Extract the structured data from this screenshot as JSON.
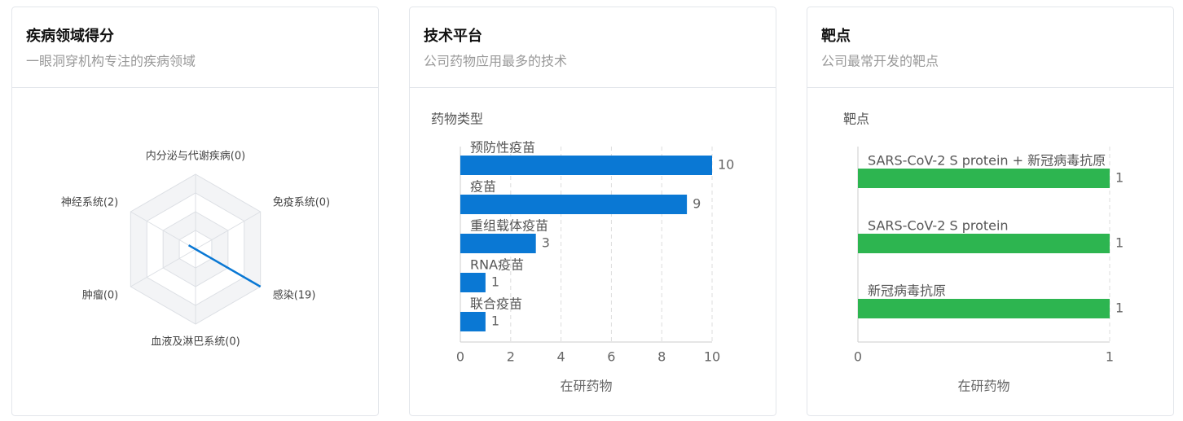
{
  "chart_data": [
    {
      "type": "radar",
      "title": "疾病领域得分",
      "subtitle": "一眼洞穿机构专注的疾病领域",
      "categories": [
        "内分泌与代谢疾病(0)",
        "免疫系统(0)",
        "感染(19)",
        "血液及淋巴系统(0)",
        "肿瘤(0)",
        "神经系统(2)"
      ],
      "values": [
        0,
        0,
        19,
        0,
        0,
        2
      ],
      "rlim": [
        0,
        19
      ],
      "color": "#0a78d4"
    },
    {
      "type": "hbar",
      "title": "技术平台",
      "subtitle": "公司药物应用最多的技术",
      "ylabel": "药物类型",
      "xlabel": "在研药物",
      "categories": [
        "预防性疫苗",
        "疫苗",
        "重组载体疫苗",
        "RNA疫苗",
        "联合疫苗"
      ],
      "values": [
        10,
        9,
        3,
        1,
        1
      ],
      "xlim": [
        0,
        10
      ],
      "xticks": [
        0,
        2,
        4,
        6,
        8,
        10
      ],
      "color": "#0a78d4",
      "grid": true
    },
    {
      "type": "hbar",
      "title": "靶点",
      "subtitle": "公司最常开发的靶点",
      "ylabel": "靶点",
      "xlabel": "在研药物",
      "categories": [
        "SARS-CoV-2 S protein + 新冠病毒抗原",
        "SARS-CoV-2 S protein",
        "新冠病毒抗原"
      ],
      "values": [
        1,
        1,
        1
      ],
      "xlim": [
        0,
        1
      ],
      "xticks": [
        0,
        1
      ],
      "color": "#2db550",
      "grid": true
    }
  ]
}
